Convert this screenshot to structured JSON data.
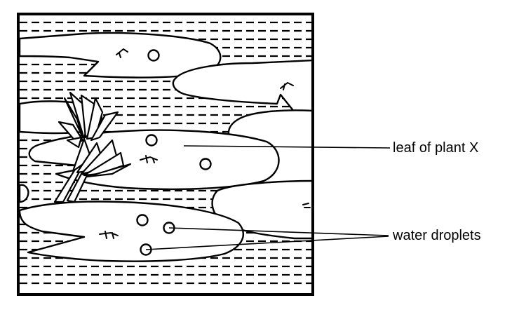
{
  "labels": {
    "leaf": "leaf of plant X",
    "water_droplets": "water droplets"
  },
  "colors": {
    "ink": "#000000",
    "paper": "#ffffff"
  }
}
